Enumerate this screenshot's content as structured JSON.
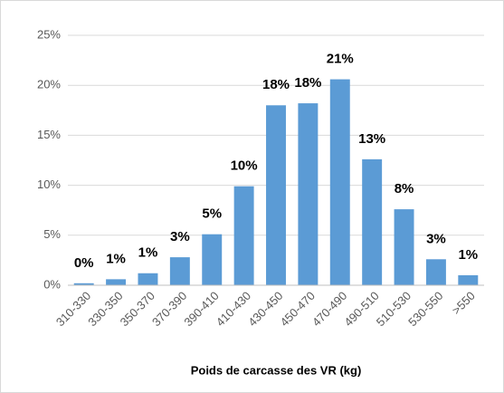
{
  "chart_data": {
    "type": "bar",
    "x_label": "Poids de carcasse des VR (kg)",
    "categories": [
      "310-330",
      "330-350",
      "350-370",
      "370-390",
      "390-410",
      "410-430",
      "430-450",
      "450-470",
      "470-490",
      "490-510",
      "510-530",
      "530-550",
      ">550"
    ],
    "values": [
      0.2,
      0.6,
      1.2,
      2.8,
      5.1,
      9.9,
      18.0,
      18.2,
      20.6,
      12.6,
      7.6,
      2.6,
      1.0
    ],
    "value_labels": [
      "0%",
      "1%",
      "1%",
      "3%",
      "5%",
      "10%",
      "18%",
      "18%",
      "21%",
      "13%",
      "8%",
      "3%",
      "1%"
    ],
    "color": "#5b9bd5",
    "ylim": [
      0,
      25
    ],
    "yticks": [
      {
        "value": 0,
        "label": "0%"
      },
      {
        "value": 5,
        "label": "5%"
      },
      {
        "value": 10,
        "label": "10%"
      },
      {
        "value": 15,
        "label": "15%"
      },
      {
        "value": 20,
        "label": "20%"
      },
      {
        "value": 25,
        "label": "25%"
      }
    ],
    "grid": true
  }
}
